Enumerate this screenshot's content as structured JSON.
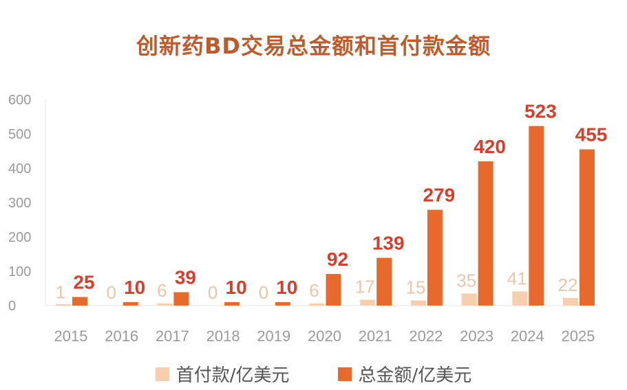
{
  "title": "创新药BD交易总金额和首付款金额",
  "colors": {
    "upfront": "#f8cfae",
    "total": "#e8692c",
    "total_label": "#d63f2b",
    "upfront_label": "#e9c6a8",
    "axis_text": "#9a9a9a"
  },
  "legend": {
    "upfront": "首付款/亿美元",
    "total": "总金额/亿美元"
  },
  "chart_data": {
    "type": "bar",
    "title": "创新药BD交易总金额和首付款金额",
    "categories": [
      "2015",
      "2016",
      "2017",
      "2018",
      "2019",
      "2020",
      "2021",
      "2022",
      "2023",
      "2024",
      "2025"
    ],
    "series": [
      {
        "name": "首付款/亿美元",
        "values": [
          1,
          0,
          6,
          0,
          0,
          6,
          17,
          15,
          35,
          41,
          22
        ]
      },
      {
        "name": "总金额/亿美元",
        "values": [
          25,
          10,
          39,
          10,
          10,
          92,
          139,
          279,
          420,
          523,
          455
        ]
      }
    ],
    "ylim": [
      0,
      600
    ],
    "yticks": [
      "0",
      "100",
      "200",
      "300",
      "400",
      "500",
      "600"
    ],
    "grid": false,
    "legend_position": "bottom"
  }
}
